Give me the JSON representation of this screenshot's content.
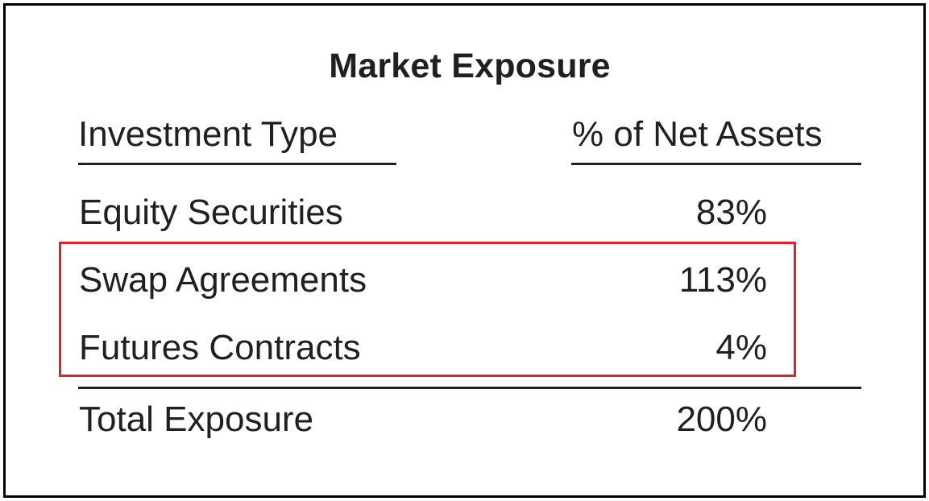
{
  "table": {
    "title": "Market Exposure",
    "headers": {
      "type": "Investment Type",
      "percent": "% of Net Assets"
    },
    "rows": [
      {
        "label": "Equity Securities",
        "value": "83%"
      },
      {
        "label": "Swap Agreements",
        "value": "113%"
      },
      {
        "label": "Futures Contracts",
        "value": "4%"
      }
    ],
    "total": {
      "label": "Total Exposure",
      "value": "200%"
    }
  },
  "colors": {
    "text": "#231f20",
    "frame_border": "#000000",
    "highlight_border": "#e0202e"
  }
}
